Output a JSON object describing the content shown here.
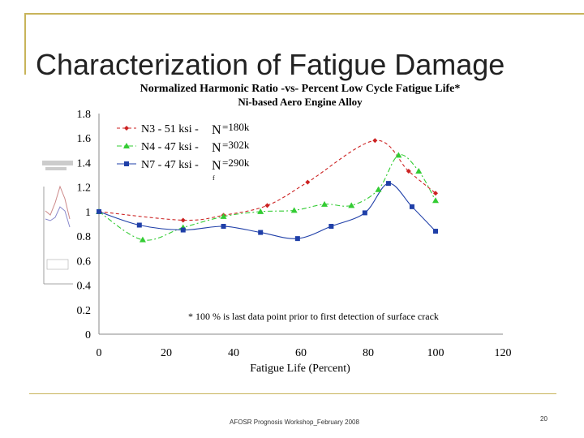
{
  "slide": {
    "title": "Characterization of Fatigue Damage",
    "footer": "AFOSR Prognosis Workshop_February 2008",
    "page_number": "20"
  },
  "colors": {
    "decor": "#c8b45a",
    "n3": "#cc2222",
    "n4": "#33cc33",
    "n7": "#1f3fa8"
  },
  "chart_data": {
    "type": "line",
    "title": "Normalized Harmonic Ratio -vs- Percent Low Cycle Fatigue Life*",
    "subtitle": "Ni-based Aero Engine Alloy",
    "xlabel": "Fatigue Life (Percent)",
    "ylabel": "",
    "xlim": [
      0,
      120
    ],
    "ylim": [
      0,
      1.8
    ],
    "xticks": [
      0,
      20,
      40,
      60,
      80,
      100,
      120
    ],
    "yticks": [
      0,
      0.2,
      0.4,
      0.6,
      0.8,
      1,
      1.2,
      1.4,
      1.6,
      1.8
    ],
    "grid": false,
    "legend_position": "top-left",
    "annotation": "* 100 % is last data point prior to first detection of surface crack",
    "series": [
      {
        "name": "N3 - 51 ksi -",
        "cycles": "=180k",
        "marker": "diamond",
        "style": "dashed",
        "x": [
          0,
          25,
          37,
          50,
          62,
          82,
          92,
          100
        ],
        "y": [
          1.0,
          0.93,
          0.97,
          1.05,
          1.24,
          1.58,
          1.33,
          1.15
        ]
      },
      {
        "name": "N4 - 47 ksi -",
        "cycles": "=302k",
        "marker": "triangle",
        "style": "dashdot",
        "x": [
          0,
          13,
          25,
          37,
          48,
          58,
          67,
          75,
          83,
          89,
          95,
          100
        ],
        "y": [
          1.0,
          0.77,
          0.87,
          0.96,
          1.0,
          1.01,
          1.06,
          1.05,
          1.18,
          1.46,
          1.33,
          1.09
        ]
      },
      {
        "name": "N7 - 47 ksi -",
        "cycles": "=290k",
        "marker": "square",
        "style": "solid",
        "x": [
          0,
          12,
          25,
          37,
          48,
          59,
          69,
          79,
          86,
          93,
          100
        ],
        "y": [
          1.0,
          0.89,
          0.85,
          0.88,
          0.83,
          0.78,
          0.88,
          0.99,
          1.23,
          1.04,
          0.84
        ]
      }
    ],
    "legend_symbol": "N",
    "legend_subscript": "f"
  }
}
